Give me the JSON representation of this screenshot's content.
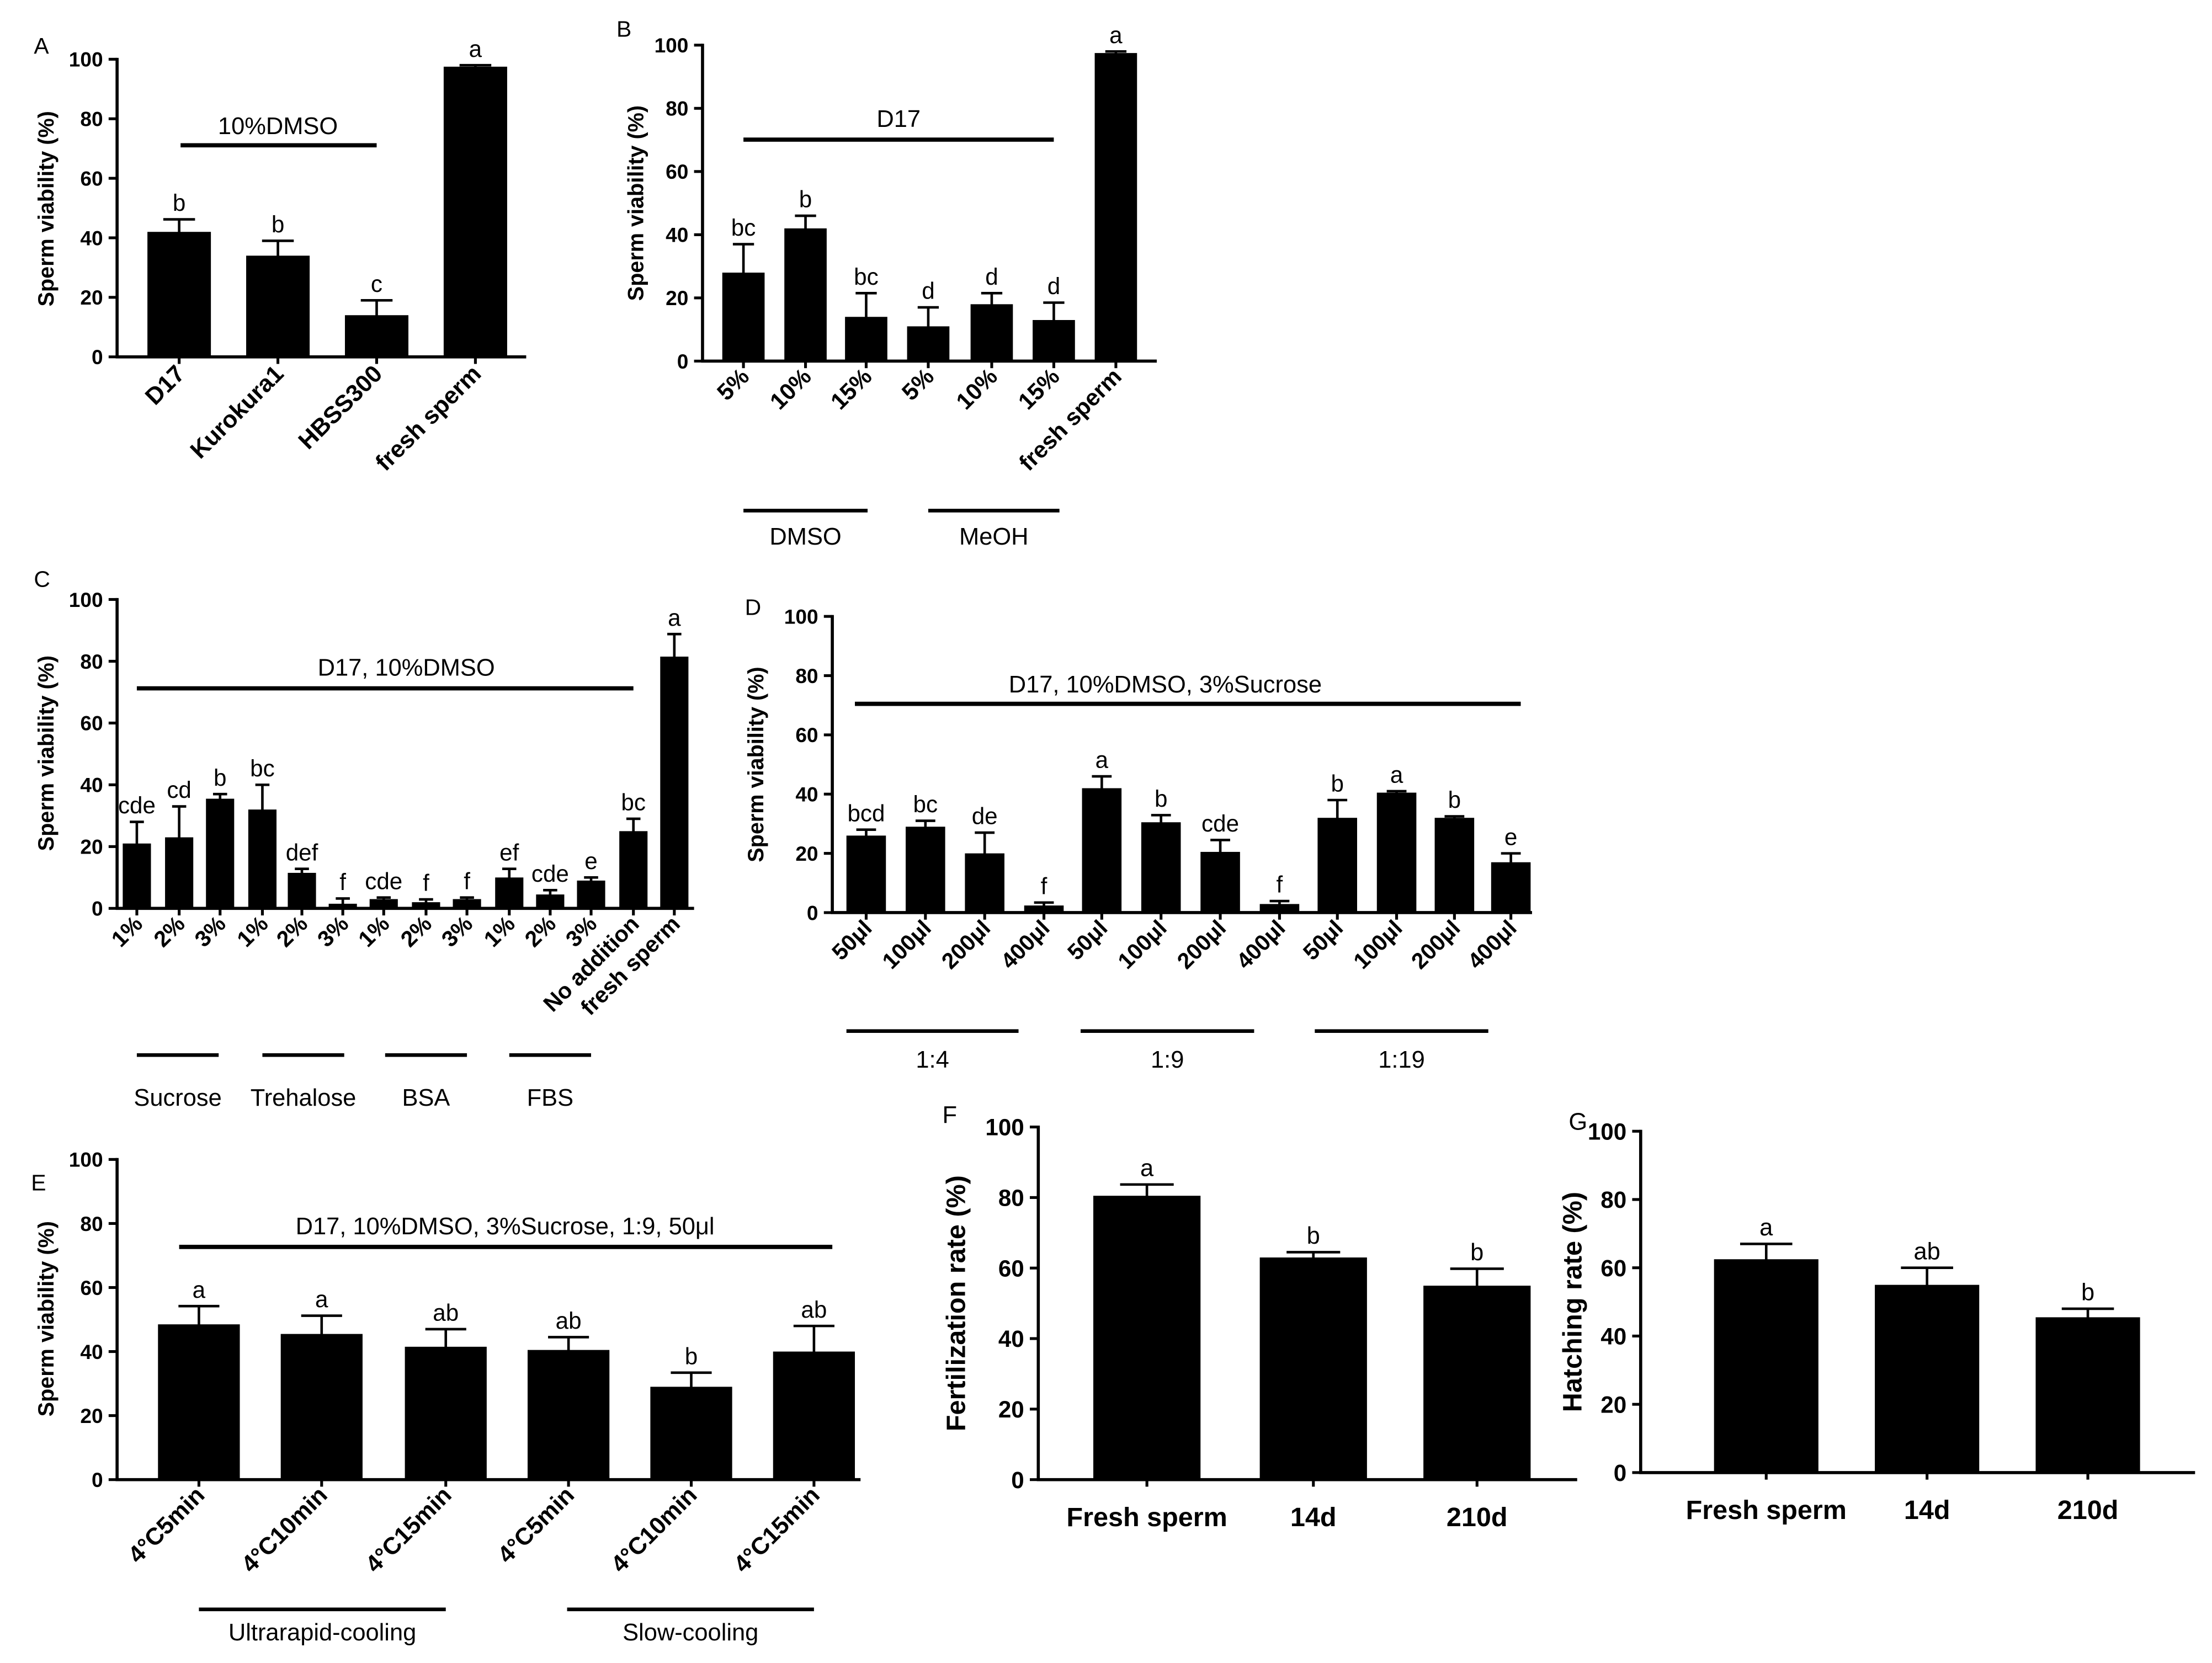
{
  "chart_data": [
    {
      "panel": "A",
      "type": "bar",
      "ylabel": "Sperm viability (%)",
      "ylim": [
        0,
        100
      ],
      "yticks": [
        0,
        20,
        40,
        60,
        80,
        100
      ],
      "categories": [
        "D17",
        "Kurokura1",
        "HBSS300",
        "fresh sperm"
      ],
      "values": [
        42,
        34,
        14,
        97.5
      ],
      "errors": [
        4.2,
        5,
        5,
        0.5
      ],
      "letters": [
        "b",
        "b",
        "c",
        "a"
      ],
      "top_group": {
        "label": "10%DMSO",
        "from": 0,
        "to": 2
      },
      "bottom_groups": []
    },
    {
      "panel": "B",
      "type": "bar",
      "ylabel": "Sperm viability (%)",
      "ylim": [
        0,
        100
      ],
      "yticks": [
        0,
        20,
        40,
        60,
        80,
        100
      ],
      "categories": [
        "5%",
        "10%",
        "15%",
        "5%",
        "10%",
        "15%",
        "fresh sperm"
      ],
      "values": [
        28,
        42,
        14,
        11,
        18,
        13,
        97.5
      ],
      "errors": [
        9,
        4,
        7.5,
        6,
        3.5,
        5.5,
        0.5
      ],
      "letters": [
        "bc",
        "b",
        "bc",
        "d",
        "d",
        "d",
        "a"
      ],
      "top_group": {
        "label": "D17",
        "from": 0,
        "to": 5
      },
      "bottom_groups": [
        {
          "label": "DMSO",
          "from": 0,
          "to": 2
        },
        {
          "label": "MeOH",
          "from": 3,
          "to": 5
        }
      ]
    },
    {
      "panel": "C",
      "type": "bar",
      "ylabel": "Sperm viability (%)",
      "ylim": [
        0,
        100
      ],
      "yticks": [
        0,
        20,
        40,
        60,
        80,
        100
      ],
      "categories": [
        "1%",
        "2%",
        "3%",
        "1%",
        "2%",
        "3%",
        "1%",
        "2%",
        "3%",
        "1%",
        "2%",
        "3%",
        "No addition",
        "fresh sperm"
      ],
      "values": [
        21,
        23,
        35.5,
        32,
        11.5,
        1.5,
        3,
        2,
        3,
        10,
        4.5,
        9,
        25,
        81.5
      ],
      "errors": [
        7,
        10,
        1.5,
        8,
        1.3,
        1.7,
        0.5,
        0.9,
        0.5,
        2.8,
        1.4,
        1,
        4,
        7.3
      ],
      "letters": [
        "cde",
        "cd",
        "b",
        "bc",
        "def",
        "f",
        "cde",
        "f",
        "f",
        "ef",
        "cde",
        "e",
        "bc",
        "a"
      ],
      "top_group": {
        "label": "D17, 10%DMSO",
        "from": 0,
        "to": 12
      },
      "bottom_groups": [
        {
          "label": "Sucrose",
          "from": 0,
          "to": 2
        },
        {
          "label": "Trehalose",
          "from": 3,
          "to": 5
        },
        {
          "label": "BSA",
          "from": 6,
          "to": 8
        },
        {
          "label": "FBS",
          "from": 9,
          "to": 11
        }
      ]
    },
    {
      "panel": "D",
      "type": "bar",
      "ylabel": "Sperm viability (%)",
      "ylim": [
        0,
        100
      ],
      "yticks": [
        0,
        20,
        40,
        60,
        80,
        100
      ],
      "categories": [
        "50μl",
        "100μl",
        "200μl",
        "400μl",
        "50μl",
        "100μl",
        "200μl",
        "400μl",
        "50μl",
        "100μl",
        "200μl",
        "400μl"
      ],
      "values": [
        26,
        29,
        20,
        2.4,
        42,
        30.5,
        20.5,
        2.9,
        32,
        40.5,
        32,
        17
      ],
      "errors": [
        2,
        2,
        7,
        1,
        4,
        2.4,
        4,
        1,
        6,
        0.5,
        0.5,
        3
      ],
      "letters": [
        "bcd",
        "bc",
        "de",
        "f",
        "a",
        "b",
        "cde",
        "f",
        "b",
        "a",
        "b",
        "e"
      ],
      "top_group": {
        "label": "D17, 10%DMSO, 3%Sucrose",
        "from": 0,
        "to": 11
      },
      "bottom_groups": [
        {
          "label": "1:4",
          "from": 0,
          "to": 3
        },
        {
          "label": "1:9",
          "from": 4,
          "to": 7
        },
        {
          "label": "1:19",
          "from": 8,
          "to": 11
        }
      ]
    },
    {
      "panel": "E",
      "type": "bar",
      "ylabel": "Sperm viability (%)",
      "ylim": [
        0,
        100
      ],
      "yticks": [
        0,
        20,
        40,
        60,
        80,
        100
      ],
      "categories": [
        "4°C5min",
        "4°C10min",
        "4°C15min",
        "4°C5min",
        "4°C10min",
        "4°C15min"
      ],
      "values": [
        48.5,
        45.5,
        41.5,
        40.5,
        29,
        40
      ],
      "errors": [
        5.7,
        5.7,
        5.5,
        4,
        4.4,
        8
      ],
      "letters": [
        "a",
        "a",
        "ab",
        "ab",
        "b",
        "ab"
      ],
      "top_group": {
        "label": "D17, 10%DMSO, 3%Sucrose, 1:9, 50μl",
        "from": 0,
        "to": 5
      },
      "bottom_groups": [
        {
          "label": "Ultrarapid-cooling",
          "from": 0,
          "to": 2
        },
        {
          "label": "Slow-cooling",
          "from": 3,
          "to": 5
        }
      ]
    },
    {
      "panel": "F",
      "type": "bar",
      "ylabel": "Fertilization rate (%)",
      "ylim": [
        0,
        100
      ],
      "yticks": [
        0,
        20,
        40,
        60,
        80,
        100
      ],
      "categories": [
        "Fresh sperm",
        "14d",
        "210d"
      ],
      "values": [
        80.5,
        63,
        55
      ],
      "errors": [
        3.2,
        1.5,
        4.8
      ],
      "letters": [
        "a",
        "b",
        "b"
      ],
      "top_group": null,
      "bottom_groups": []
    },
    {
      "panel": "G",
      "type": "bar",
      "ylabel": "Hatching rate (%)",
      "ylim": [
        0,
        100
      ],
      "yticks": [
        0,
        20,
        40,
        60,
        80,
        100
      ],
      "categories": [
        "Fresh sperm",
        "14d",
        "210d"
      ],
      "values": [
        62.5,
        55,
        45.5
      ],
      "errors": [
        4.5,
        5,
        2.5
      ],
      "letters": [
        "a",
        "ab",
        "b"
      ],
      "top_group": null,
      "bottom_groups": []
    }
  ]
}
